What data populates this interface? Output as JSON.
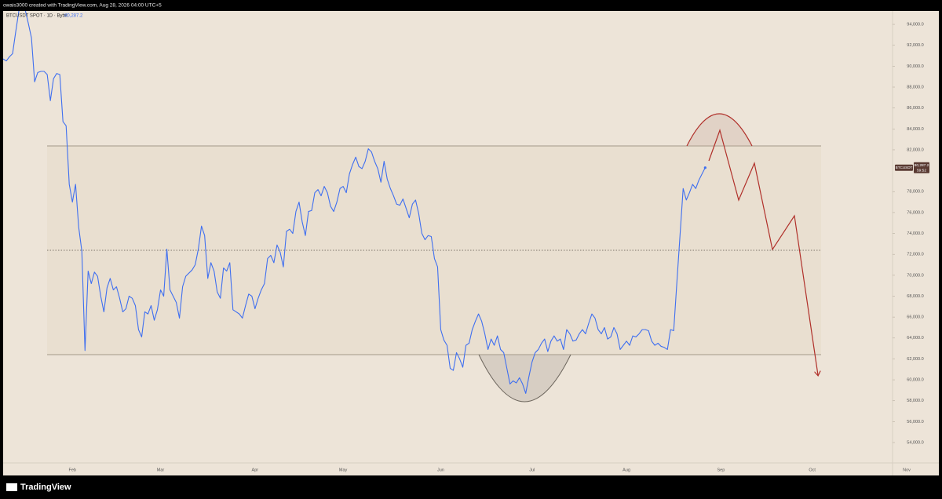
{
  "header": {
    "credit": "owais3000 created with TradingView.com, Aug 28, 2026 04:00 UTC+5"
  },
  "footer": {
    "brand": "TradingView"
  },
  "chart_data": {
    "type": "line",
    "legend": {
      "text": "BTCUSDT SPOT · 1D · Bybit",
      "last": "80,287.2"
    },
    "countdown": "59:52",
    "categories": [
      null,
      null,
      null,
      null,
      null,
      null,
      null,
      null,
      null,
      null,
      null,
      null,
      null,
      null,
      null,
      null,
      null,
      null,
      null,
      null,
      null,
      null,
      "Feb",
      null,
      null,
      null,
      null,
      null,
      null,
      null,
      null,
      null,
      null,
      null,
      null,
      null,
      null,
      null,
      null,
      null,
      null,
      null,
      null,
      null,
      null,
      null,
      null,
      null,
      null,
      null,
      "Mar",
      null,
      null,
      null,
      null,
      null,
      null,
      null,
      null,
      null,
      null,
      null,
      null,
      null,
      null,
      null,
      null,
      null,
      null,
      null,
      null,
      null,
      null,
      null,
      null,
      null,
      null,
      null,
      null,
      null,
      "Apr",
      null,
      null,
      null,
      null,
      null,
      null,
      null,
      null,
      null,
      null,
      null,
      null,
      null,
      null,
      null,
      null,
      null,
      null,
      null,
      null,
      null,
      null,
      null,
      null,
      null,
      null,
      null,
      "May",
      null,
      null,
      null,
      null,
      null,
      null,
      null,
      null,
      null,
      null,
      null,
      null,
      null,
      null,
      null,
      null,
      null,
      null,
      null,
      null,
      null,
      null,
      null,
      null,
      null,
      null,
      null,
      null,
      null,
      null,
      "Jun",
      null,
      null,
      null,
      null,
      null,
      null,
      null,
      null,
      null,
      null,
      null,
      null,
      null,
      null,
      null,
      null,
      null,
      null,
      null,
      null,
      null,
      null,
      null,
      null,
      null,
      null,
      null,
      null,
      "Jul",
      null,
      null,
      null,
      null,
      null,
      null,
      null,
      null,
      null,
      null,
      null,
      null,
      null,
      null,
      null,
      null,
      null,
      null,
      null,
      null,
      null,
      null,
      null,
      null,
      null,
      null,
      null,
      null,
      null,
      "Aug",
      null,
      null,
      null,
      null,
      null,
      null,
      null,
      null,
      null,
      null,
      null,
      null,
      null,
      null,
      null,
      null,
      null,
      null,
      null,
      null,
      null,
      null,
      null,
      null,
      null,
      null,
      null,
      null,
      null,
      "Sep",
      null,
      null,
      null,
      null,
      null,
      null,
      null,
      null,
      null,
      null,
      null,
      null,
      null,
      null,
      null,
      null,
      null,
      null,
      null,
      null,
      null,
      null,
      null,
      null,
      null,
      null,
      null,
      null,
      "Oct",
      null,
      null,
      null,
      null,
      null,
      null,
      null,
      null,
      null,
      null,
      null,
      null,
      null,
      null,
      null,
      null,
      null,
      null,
      null,
      null,
      null,
      null,
      null,
      null,
      null,
      null,
      null,
      null,
      null,
      "Nov"
    ],
    "series": [
      {
        "name": "BTCUSDT",
        "color": "#3f6ff0",
        "values": [
          90700,
          90500,
          90900,
          91200,
          93300,
          95300,
          95800,
          95400,
          94100,
          92700,
          88500,
          89400,
          89500,
          89500,
          89200,
          86700,
          88800,
          89300,
          89200,
          84700,
          84300,
          78700,
          77000,
          78700,
          74600,
          72300,
          62800,
          70400,
          69200,
          70300,
          69900,
          68000,
          66500,
          68800,
          69700,
          68600,
          68900,
          67800,
          66500,
          66800,
          68000,
          67800,
          67100,
          64800,
          64100,
          66500,
          66300,
          67100,
          65700,
          66700,
          68600,
          68000,
          72500,
          68600,
          68000,
          67400,
          65900,
          68900,
          69900,
          70200,
          70500,
          71000,
          72500,
          74700,
          73800,
          69700,
          71200,
          70400,
          68400,
          67800,
          70700,
          70400,
          71200,
          66700,
          66500,
          66300,
          65900,
          67100,
          68200,
          68000,
          66800,
          67800,
          68600,
          69200,
          71600,
          71900,
          71200,
          72900,
          72200,
          70800,
          74200,
          74400,
          74000,
          76100,
          77000,
          75100,
          73800,
          76100,
          76200,
          77900,
          78200,
          77600,
          78500,
          77900,
          76600,
          76100,
          77000,
          78300,
          78500,
          77900,
          79700,
          80600,
          81300,
          80400,
          80200,
          80900,
          82100,
          81800,
          80900,
          80200,
          78900,
          80900,
          79200,
          78300,
          77600,
          76800,
          76700,
          77300,
          76400,
          75500,
          76800,
          77200,
          75900,
          74000,
          73400,
          73800,
          73700,
          71600,
          70800,
          64800,
          63800,
          63300,
          61100,
          60900,
          62600,
          62000,
          61200,
          63300,
          63500,
          64800,
          65600,
          66300,
          65600,
          64400,
          62900,
          63900,
          63300,
          64200,
          62900,
          62600,
          61100,
          59600,
          59900,
          59700,
          60200,
          59600,
          58700,
          60300,
          61700,
          62600,
          62900,
          63500,
          63900,
          62700,
          63700,
          64200,
          63700,
          63900,
          62900,
          64800,
          64400,
          63700,
          63800,
          64400,
          64800,
          64400,
          65400,
          66300,
          65900,
          64800,
          64400,
          65000,
          63900,
          64100,
          65000,
          64400,
          62900,
          63300,
          63700,
          63300,
          64200,
          64100,
          64400,
          64800,
          64800,
          64700,
          63700,
          63300,
          63500,
          63200,
          63100,
          62900,
          64800,
          64700,
          69300,
          73800,
          78300,
          77200,
          77900,
          78700,
          78300,
          79100,
          79700,
          80287.2,
          null,
          null,
          null,
          null,
          null,
          null,
          null,
          null,
          null,
          null,
          null,
          null,
          null,
          null,
          null,
          null,
          null,
          null,
          null,
          null,
          null,
          null,
          null,
          null,
          null,
          null,
          null,
          null,
          null,
          null,
          null,
          null,
          null,
          null,
          null,
          null,
          null,
          null,
          null,
          null,
          null,
          null,
          null,
          null,
          null,
          null,
          null,
          null,
          null,
          null,
          null,
          null,
          null,
          null,
          null,
          null,
          null,
          null,
          null,
          null,
          null,
          null,
          null,
          null
        ]
      }
    ],
    "ylim": [
      50850,
      95280
    ],
    "yticks": [
      {
        "value": 94000,
        "label": "94,000.0"
      },
      {
        "value": 92000,
        "label": "92,000.0"
      },
      {
        "value": 90000,
        "label": "90,000.0"
      },
      {
        "value": 88000,
        "label": "88,000.0"
      },
      {
        "value": 86000,
        "label": "86,000.0"
      },
      {
        "value": 84000,
        "label": "84,000.0"
      },
      {
        "value": 82000,
        "label": "82,000.0"
      },
      {
        "value": 78000,
        "label": "78,000.0"
      },
      {
        "value": 76000,
        "label": "76,000.0"
      },
      {
        "value": 74000,
        "label": "74,000.0"
      },
      {
        "value": 72000,
        "label": "72,000.0"
      },
      {
        "value": 70000,
        "label": "70,000.0"
      },
      {
        "value": 68000,
        "label": "68,000.0"
      },
      {
        "value": 66000,
        "label": "66,000.0"
      },
      {
        "value": 64000,
        "label": "64,000.0"
      },
      {
        "value": 62000,
        "label": "62,000.0"
      },
      {
        "value": 60000,
        "label": "60,000.0"
      },
      {
        "value": 58000,
        "label": "58,000.0"
      },
      {
        "value": 56000,
        "label": "56,000.0"
      },
      {
        "value": 54000,
        "label": "54,000.0"
      }
    ],
    "grid": false,
    "background": "#ede4d8"
  }
}
